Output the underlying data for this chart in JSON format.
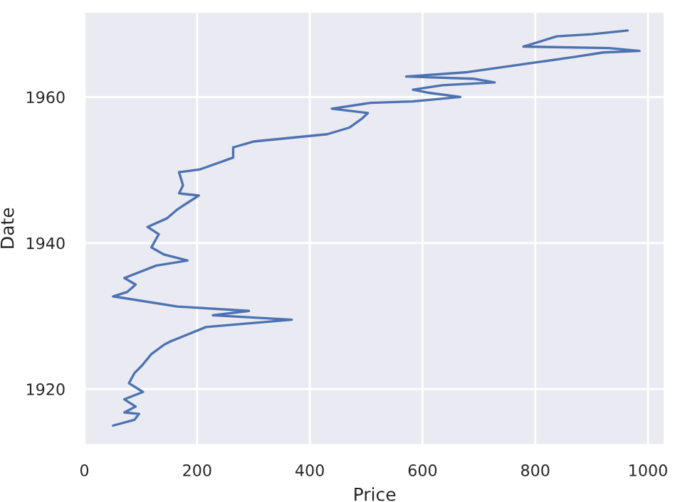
{
  "chart_data": {
    "type": "line",
    "xlabel": "Price",
    "ylabel": "Date",
    "xlim": [
      0,
      1030
    ],
    "xticks": [
      0,
      200,
      400,
      600,
      800,
      1000
    ],
    "ylim": [
      1912.3,
      1971.7
    ],
    "yticks": [
      1920,
      1940,
      1960
    ],
    "grid": true,
    "series": [
      {
        "color": "#4c72b0",
        "x": [
          51,
          89,
          97,
          71,
          91,
          71,
          104,
          79,
          89,
          102,
          119,
          142,
          152,
          216,
          368,
          228,
          292,
          165,
          51,
          76,
          91,
          71,
          127,
          183,
          142,
          119,
          132,
          112,
          147,
          165,
          203,
          168,
          175,
          168,
          206,
          264,
          264,
          300,
          431,
          470,
          492,
          503,
          439,
          508,
          583,
          667,
          609,
          583,
          635,
          728,
          690,
          571,
          680,
          780,
          871,
          921,
          985,
          931,
          779,
          838,
          900,
          964
        ],
        "values": [
          1915.0,
          1915.8,
          1916.6,
          1916.8,
          1917.6,
          1918.6,
          1919.6,
          1920.8,
          1922.2,
          1923.2,
          1924.8,
          1926.1,
          1926.5,
          1928.5,
          1929.5,
          1930.1,
          1930.7,
          1931.3,
          1932.7,
          1933.3,
          1934.3,
          1935.2,
          1936.9,
          1937.6,
          1938.4,
          1939.4,
          1941.2,
          1942.2,
          1943.4,
          1944.6,
          1946.5,
          1946.8,
          1947.9,
          1949.7,
          1950.1,
          1951.7,
          1953.1,
          1953.9,
          1954.9,
          1955.8,
          1957.0,
          1957.8,
          1958.4,
          1959.2,
          1959.4,
          1960.0,
          1960.6,
          1961.0,
          1961.6,
          1962.0,
          1962.5,
          1962.8,
          1963.4,
          1964.5,
          1965.5,
          1966.1,
          1966.3,
          1966.7,
          1966.9,
          1968.3,
          1968.6,
          1969.1
        ]
      }
    ]
  }
}
